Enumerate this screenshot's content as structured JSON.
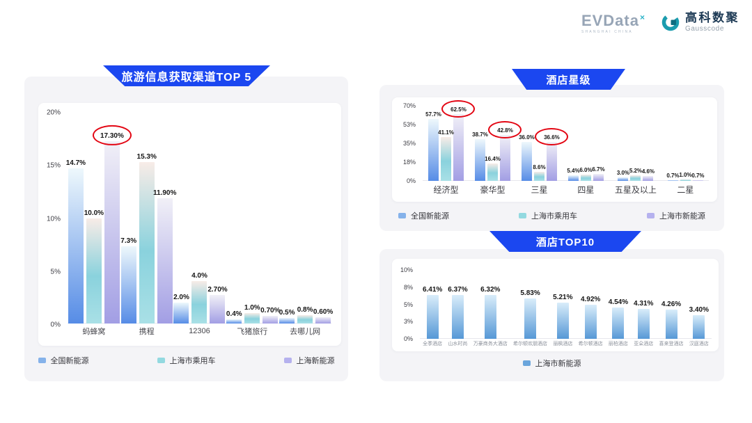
{
  "header": {
    "evdata_logo": {
      "text": "EVData",
      "sup": "×",
      "subtext": "SHANGHAI CHINA"
    },
    "gausscode_logo": {
      "cn": "高科数聚",
      "en": "Gausscode"
    }
  },
  "colors": {
    "banner_blue": "#1b47f0",
    "highlight_red": "#e30613",
    "panel_gray": "#f4f4f7"
  },
  "chart_data": [
    {
      "type": "bar",
      "title": "旅游信息获取渠道TOP 5",
      "categories": [
        "蚂蜂窝",
        "携程",
        "12306",
        "飞猪旅行",
        "去哪儿网"
      ],
      "ymax": 20,
      "yticks": [
        "20%",
        "15%",
        "10%",
        "5%",
        "0%"
      ],
      "grid": false,
      "legend_position": "bottom",
      "series": [
        {
          "name": "全国新能源",
          "values": [
            14.7,
            7.3,
            2.0,
            0.4,
            0.5
          ],
          "labels": [
            "14.7%",
            "7.3%",
            "2.0%",
            "0.4%",
            "0.5%"
          ],
          "gradient": [
            "#eef8fc",
            "#568ce6"
          ],
          "swatch": "#85b2ea"
        },
        {
          "name": "上海市乘用车",
          "values": [
            10.0,
            15.3,
            4.0,
            1.0,
            0.8
          ],
          "labels": [
            "10.0%",
            "15.3%",
            "4.0%",
            "1.0%",
            "0.8%"
          ],
          "gradient": [
            "#f8ece7",
            "#8ad2dd 55%",
            "#a9e0e6"
          ],
          "swatch": "#93d9e0"
        },
        {
          "name": "上海新能源",
          "values": [
            17.3,
            11.9,
            2.7,
            0.7,
            0.6
          ],
          "labels": [
            "17.30%",
            "11.90%",
            "2.70%",
            "0.70%",
            "0.60%"
          ],
          "gradient": [
            "#f1f0f7",
            "#a29ee4"
          ],
          "swatch": "#b5b1ee"
        }
      ],
      "circled": [
        [
          2,
          0
        ]
      ]
    },
    {
      "type": "bar",
      "title": "酒店星级",
      "categories": [
        "经济型",
        "豪华型",
        "三星",
        "四星",
        "五星及以上",
        "二星"
      ],
      "ymax": 70,
      "yticks": [
        "70%",
        "53%",
        "35%",
        "18%",
        "0%"
      ],
      "grid": false,
      "legend_position": "bottom",
      "series": [
        {
          "name": "全国新能源",
          "values": [
            57.7,
            38.7,
            36.0,
            5.4,
            3.0,
            0.7
          ],
          "labels": [
            "57.7%",
            "38.7%",
            "36.0%",
            "5.4%",
            "3.0%",
            "0.7%"
          ],
          "gradient": [
            "#eef8fc",
            "#568ce6"
          ],
          "swatch": "#85b2ea"
        },
        {
          "name": "上海市乘用车",
          "values": [
            41.1,
            16.4,
            8.6,
            6.0,
            5.2,
            1.0
          ],
          "labels": [
            "41.1%",
            "16.4%",
            "8.6%",
            "6.0%",
            "5.2%",
            "1.0%"
          ],
          "gradient": [
            "#f8ece7",
            "#8ad2dd 55%",
            "#a9e0e6"
          ],
          "swatch": "#93d9e0"
        },
        {
          "name": "上海市新能源",
          "values": [
            62.5,
            42.8,
            36.6,
            6.7,
            4.6,
            0.7
          ],
          "labels": [
            "62.5%",
            "42.8%",
            "36.6%",
            "6.7%",
            "4.6%",
            "0.7%"
          ],
          "gradient": [
            "#f1f0f7",
            "#a29ee4"
          ],
          "swatch": "#b5b1ee"
        }
      ],
      "circled": [
        [
          2,
          0
        ],
        [
          2,
          1
        ],
        [
          2,
          2
        ]
      ]
    },
    {
      "type": "bar",
      "title": "酒店TOP10",
      "categories": [
        "全季酒店",
        "山水时尚",
        "万豪商务大酒店",
        "希尔顿欢朋酒店",
        "丽枫酒店",
        "希尔顿酒店",
        "丽柏酒店",
        "亚朵酒店",
        "喜来登酒店",
        "汉庭酒店"
      ],
      "ymax": 10,
      "yticks": [
        "10%",
        "8%",
        "5%",
        "3%",
        "0%"
      ],
      "grid": false,
      "legend_position": "bottom",
      "series": [
        {
          "name": "上海市新能源",
          "values": [
            6.41,
            6.37,
            6.32,
            5.83,
            5.21,
            4.92,
            4.54,
            4.31,
            4.26,
            3.4
          ],
          "labels": [
            "6.41%",
            "6.37%",
            "6.32%",
            "5.83%",
            "5.21%",
            "4.92%",
            "4.54%",
            "4.31%",
            "4.26%",
            "3.40%"
          ],
          "gradient": [
            "#d9edfa",
            "#5698d6"
          ],
          "swatch": "#6aa5dc"
        }
      ],
      "circled": []
    }
  ]
}
